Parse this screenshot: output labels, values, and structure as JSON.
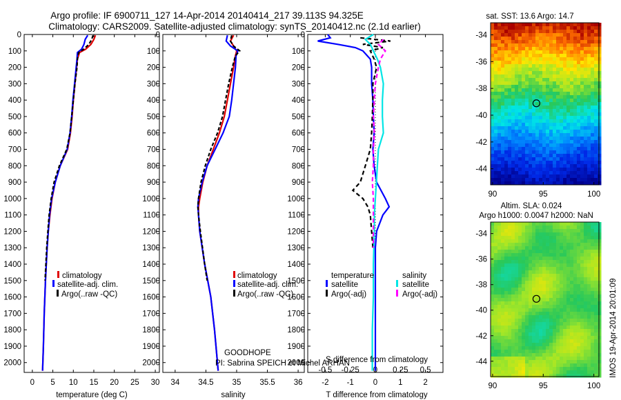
{
  "header": {
    "title_line1": "Argo profile: IF 6900711_127 14-Apr-2014 20140414_217 39.113S 94.325E",
    "title_line2": "Climatology: CARS2009. Satellite-adjusted climatology: synTS_20140412.nc (2.1d earlier)"
  },
  "footer_note": {
    "project": "GOODHOPE",
    "pi": "PI: Sabrina SPEICH et Michel ARHAN"
  },
  "side_stamp": "IMOS 19-Apr-2014 20:01:09",
  "colors": {
    "climatology": "#e00000",
    "satellite": "#0000ff",
    "argo": "#000000",
    "satellite_salinity": "#00e5e5",
    "argo_salinity": "#ff00ff"
  },
  "depth_axis": {
    "ticks": [
      0,
      100,
      200,
      300,
      400,
      500,
      600,
      700,
      800,
      900,
      1000,
      1100,
      1200,
      1300,
      1400,
      1500,
      1600,
      1700,
      1800,
      1900,
      2000
    ],
    "range": [
      0,
      2060
    ]
  },
  "chart_data": [
    {
      "type": "line",
      "panel": "temperature",
      "xlabel": "temperature (deg C)",
      "xlim": [
        -2,
        31
      ],
      "xticks": [
        0,
        5,
        10,
        15,
        20,
        25,
        30
      ],
      "ylim": [
        2060,
        0
      ],
      "legend": [
        "climatology",
        "satellite-adj. clim.",
        "Argo(..raw -QC)"
      ],
      "series": [
        {
          "name": "climatology",
          "depth": [
            5,
            30,
            60,
            90,
            110,
            150,
            200,
            300,
            400,
            500,
            600,
            700,
            800,
            900,
            1000,
            1100,
            1200,
            1300,
            1400,
            1500,
            1700,
            1900,
            2050
          ],
          "values": [
            15.4,
            15.0,
            14.3,
            13.0,
            11.5,
            11.0,
            10.8,
            10.4,
            10.0,
            9.7,
            9.3,
            8.6,
            6.8,
            5.6,
            4.8,
            4.3,
            3.9,
            3.6,
            3.4,
            3.2,
            2.9,
            2.7,
            2.5
          ]
        },
        {
          "name": "satellite-adj. clim.",
          "depth": [
            5,
            30,
            60,
            90,
            110,
            150,
            200,
            300,
            400,
            500,
            600,
            700,
            800,
            900,
            1000,
            1100,
            1200,
            1300,
            1400,
            1500,
            1700,
            1900,
            2050
          ],
          "values": [
            13.5,
            12.9,
            12.6,
            12.0,
            11.0,
            10.9,
            10.7,
            10.3,
            9.9,
            9.6,
            9.2,
            8.5,
            6.8,
            5.6,
            4.7,
            4.2,
            3.9,
            3.6,
            3.4,
            3.2,
            2.9,
            2.7,
            2.5
          ]
        },
        {
          "name": "Argo(..raw -QC)",
          "depth": [
            5,
            30,
            60,
            90,
            110,
            150,
            200,
            300,
            400,
            500,
            600,
            700,
            800,
            900,
            1000,
            1100,
            1200,
            1300,
            1400,
            1500
          ],
          "values": [
            14.8,
            14.5,
            13.8,
            12.5,
            11.3,
            11.0,
            10.9,
            10.4,
            10.0,
            9.6,
            9.2,
            8.4,
            6.6,
            5.3,
            4.6,
            4.1,
            3.8,
            3.5,
            3.3,
            3.1
          ]
        }
      ]
    },
    {
      "type": "line",
      "panel": "salinity",
      "xlabel": "salinity",
      "xlim": [
        33.8,
        36.1
      ],
      "xticks": [
        34,
        34.5,
        35,
        35.5,
        36
      ],
      "xticklabels": [
        "34",
        "34.5",
        "35",
        "35.5",
        "36"
      ],
      "ylim": [
        2060,
        0
      ],
      "legend": [
        "climatology",
        "satellite-adj. clim.",
        "Argo(..raw -QC)"
      ],
      "series": [
        {
          "name": "climatology",
          "depth": [
            5,
            40,
            70,
            100,
            130,
            200,
            300,
            400,
            500,
            600,
            700,
            800,
            900,
            1000,
            1050,
            1100,
            1200,
            1400,
            1600,
            1800,
            2050
          ],
          "values": [
            34.95,
            34.9,
            34.95,
            35.0,
            34.98,
            34.95,
            34.9,
            34.85,
            34.8,
            34.72,
            34.62,
            34.52,
            34.45,
            34.4,
            34.38,
            34.38,
            34.4,
            34.48,
            34.58,
            34.64,
            34.7
          ]
        },
        {
          "name": "satellite-adj. clim.",
          "depth": [
            5,
            40,
            70,
            100,
            130,
            200,
            300,
            400,
            500,
            600,
            700,
            800,
            900,
            1000,
            1050,
            1100,
            1200,
            1400,
            1600,
            1800,
            2050
          ],
          "values": [
            34.85,
            34.83,
            34.9,
            35.02,
            34.99,
            34.98,
            34.95,
            34.92,
            34.88,
            34.78,
            34.65,
            34.52,
            34.44,
            34.38,
            34.37,
            34.38,
            34.4,
            34.48,
            34.58,
            34.64,
            34.7
          ]
        },
        {
          "name": "Argo(..raw -QC)",
          "depth": [
            5,
            40,
            70,
            100,
            130,
            200,
            300,
            400,
            500,
            600,
            700,
            800,
            900,
            1000,
            1050,
            1100,
            1200,
            1400,
            1500
          ],
          "values": [
            34.92,
            34.9,
            34.95,
            35.05,
            34.98,
            34.93,
            34.87,
            34.82,
            34.77,
            34.69,
            34.58,
            34.49,
            34.42,
            34.38,
            34.37,
            34.38,
            34.41,
            34.48,
            34.52
          ]
        }
      ]
    },
    {
      "type": "line",
      "panel": "difference",
      "xlabel": "T difference from climatology",
      "xlabel2": "S difference from climatology",
      "xlim": [
        -2.7,
        2.7
      ],
      "xticks": [
        -2,
        -1,
        0,
        1,
        2
      ],
      "xticks2": [
        -0.5,
        -0.25,
        0,
        0.25,
        0.5
      ],
      "xticklabels2": [
        "-0.5",
        "-0.25",
        "0",
        "0.25",
        "0.5"
      ],
      "ylim": [
        2060,
        0
      ],
      "legend_group1_title": "temperature",
      "legend_group2_title": "salinity",
      "legend": [
        "satellite",
        "Argo(-adj)",
        "satellite",
        "Argo(-adj)"
      ],
      "series": [
        {
          "name": "temperature satellite",
          "depth": [
            0,
            20,
            40,
            60,
            80,
            100,
            150,
            200,
            300,
            400,
            500,
            600,
            700,
            800,
            900,
            1000,
            1050,
            1100,
            1200,
            1300,
            1500,
            1700,
            1900,
            2050
          ],
          "values": [
            -1.9,
            -1.8,
            -2.3,
            -1.5,
            -0.8,
            -0.5,
            -0.2,
            -0.15,
            -0.15,
            -0.1,
            -0.08,
            -0.05,
            -0.1,
            -0.05,
            0.05,
            0.4,
            0.55,
            0.3,
            0.05,
            0.0,
            0.0,
            0.0,
            0.0,
            0.0
          ]
        },
        {
          "name": "temperature Argo(-adj)",
          "depth": [
            20,
            40,
            60,
            80,
            100,
            150,
            200,
            300,
            400,
            500,
            600,
            700,
            800,
            900,
            950,
            1000,
            1050,
            1100,
            1200,
            1300
          ],
          "values": [
            -0.6,
            0.6,
            -0.5,
            0.3,
            -0.2,
            -0.05,
            0.05,
            -0.1,
            -0.1,
            -0.12,
            -0.15,
            -0.2,
            -0.4,
            -0.6,
            -0.9,
            -0.5,
            -0.3,
            -0.2,
            -0.15,
            -0.1
          ]
        },
        {
          "name": "salinity satellite",
          "depth": [
            0,
            30,
            60,
            100,
            150,
            200,
            300,
            400,
            500,
            600,
            700,
            800,
            900,
            1000,
            1100,
            1200,
            1400,
            1600,
            1800,
            2050
          ],
          "values": [
            -0.02,
            -0.1,
            -0.05,
            -0.02,
            0.02,
            0.05,
            0.08,
            0.07,
            0.07,
            0.08,
            0.03,
            0.02,
            0.01,
            0.0,
            -0.01,
            -0.01,
            -0.02,
            -0.02,
            -0.03,
            -0.03
          ]
        },
        {
          "name": "salinity Argo(-adj)",
          "depth": [
            30,
            60,
            100,
            150,
            200,
            300,
            400,
            500,
            600,
            700,
            800,
            900,
            1000,
            1100,
            1200,
            1300
          ],
          "values": [
            0.08,
            0.03,
            0.1,
            0.05,
            0.03,
            0.0,
            -0.01,
            -0.02,
            -0.01,
            -0.02,
            -0.02,
            -0.03,
            -0.02,
            -0.02,
            -0.02,
            -0.02
          ]
        }
      ]
    },
    {
      "type": "heatmap",
      "panel": "sst_map",
      "title": "sat. SST: 13.6 Argo: 14.7",
      "xticks": [
        90,
        95,
        100
      ],
      "yticks": [
        -34,
        -36,
        -38,
        -40,
        -42,
        -44
      ],
      "xlim": [
        89.8,
        100.5
      ],
      "ylim": [
        -45.2,
        -33.1
      ],
      "marker": {
        "lon": 94.325,
        "lat": -39.113
      }
    },
    {
      "type": "heatmap",
      "panel": "sla_map",
      "title": "Altim. SLA: 0.024",
      "subtitle": "Argo h1000: 0.0047 h2000: NaN",
      "xticks": [
        90,
        95,
        100
      ],
      "yticks": [
        -34,
        -36,
        -38,
        -40,
        -42,
        -44
      ],
      "xlim": [
        89.8,
        100.5
      ],
      "ylim": [
        -45.2,
        -33.1
      ],
      "marker": {
        "lon": 94.325,
        "lat": -39.113
      }
    }
  ],
  "legend_text": {
    "temp_panel": [
      "climatology",
      "satellite-adj. clim.",
      "Argo(..raw -QC)"
    ],
    "sal_panel": [
      "climatology",
      "satellite-adj. clim.",
      "Argo(..raw -QC)"
    ],
    "diff_temperature": "temperature",
    "diff_salinity": "salinity",
    "diff_sat": "satellite",
    "diff_argo": "Argo(-adj)"
  }
}
